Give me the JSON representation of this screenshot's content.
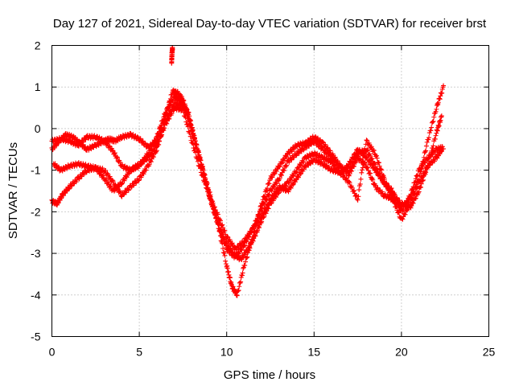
{
  "chart_data": {
    "type": "scatter",
    "title": "Day 127 of 2021, Sidereal Day-to-day VTEC variation (SDTVAR) for receiver brst",
    "xlabel": "GPS time / hours",
    "ylabel": "SDTVAR / TECUs",
    "xlim": [
      0,
      25
    ],
    "ylim": [
      -5,
      2
    ],
    "xticks": [
      "0",
      "5",
      "10",
      "15",
      "20",
      "25"
    ],
    "yticks": [
      "-5",
      "-4",
      "-3",
      "-2",
      "-1",
      "0",
      "1",
      "2"
    ],
    "grid": true,
    "marker": "plus",
    "color": "#ff0000",
    "series": [
      {
        "x": [
          0.0,
          0.5,
          1.0,
          1.5,
          2.0,
          2.5,
          3.0,
          3.3,
          3.6,
          4.0,
          4.5,
          5.0,
          5.5,
          6.0,
          6.5,
          6.9,
          7.2,
          7.5,
          7.8,
          8.1,
          8.5,
          9.0,
          9.5,
          10.0,
          10.3,
          10.6,
          11.0,
          11.5,
          12.0,
          12.5,
          13.0,
          13.5,
          14.0,
          14.5,
          15.0,
          15.5,
          16.0,
          16.5,
          17.0,
          17.5,
          18.0,
          18.5,
          19.0,
          19.5,
          20.0,
          20.5,
          21.0,
          21.5,
          22.0,
          22.4
        ],
        "y": [
          -0.3,
          -0.25,
          -0.3,
          -0.4,
          -0.2,
          -0.2,
          -0.3,
          -0.25,
          -0.3,
          -0.2,
          -0.15,
          -0.25,
          -0.45,
          -0.3,
          0.3,
          0.9,
          0.85,
          0.7,
          0.3,
          -0.2,
          -0.8,
          -1.5,
          -2.3,
          -3.3,
          -3.8,
          -4.0,
          -3.3,
          -2.6,
          -1.8,
          -1.2,
          -0.9,
          -0.6,
          -0.4,
          -0.35,
          -0.2,
          -0.35,
          -0.6,
          -0.9,
          -1.1,
          -0.7,
          -0.9,
          -1.4,
          -1.6,
          -1.7,
          -1.9,
          -1.7,
          -1.2,
          -0.3,
          0.5,
          1.0
        ]
      },
      {
        "x": [
          0.0,
          0.3,
          0.6,
          1.0,
          1.5,
          2.0,
          2.5,
          3.0,
          3.5,
          4.0,
          4.5,
          5.0,
          5.5,
          6.0,
          6.5,
          7.0,
          7.5,
          7.8,
          8.2,
          8.6,
          9.0,
          9.5,
          10.0,
          10.5,
          11.0,
          11.5,
          12.0,
          12.5,
          13.0,
          13.5,
          14.0,
          14.5,
          15.0,
          15.5,
          16.0,
          16.5,
          17.0,
          17.5,
          18.0,
          18.5,
          19.0,
          19.5,
          20.0,
          20.5,
          21.0,
          21.5,
          22.0,
          22.3
        ],
        "y": [
          -1.75,
          -1.8,
          -1.6,
          -1.4,
          -1.2,
          -1.0,
          -0.95,
          -1.0,
          -1.3,
          -1.6,
          -1.4,
          -1.2,
          -0.9,
          -0.5,
          0.2,
          0.6,
          0.55,
          0.4,
          -0.3,
          -0.9,
          -1.6,
          -2.3,
          -2.9,
          -3.1,
          -2.8,
          -2.4,
          -1.9,
          -1.5,
          -1.2,
          -0.8,
          -0.6,
          -0.45,
          -0.3,
          -0.5,
          -0.7,
          -0.95,
          -1.0,
          -0.6,
          -0.5,
          -0.9,
          -1.3,
          -1.6,
          -1.8,
          -1.9,
          -1.5,
          -0.9,
          -0.1,
          0.3
        ]
      },
      {
        "x": [
          0.0,
          0.4,
          0.8,
          1.2,
          1.6,
          2.0,
          2.5,
          3.0,
          3.5,
          4.0,
          4.5,
          5.0,
          5.5,
          6.0,
          6.5,
          7.0,
          7.3,
          7.6,
          8.0,
          8.4,
          8.8,
          9.2,
          9.6,
          10.0,
          10.4,
          10.8,
          11.2,
          11.6,
          12.0,
          12.5,
          13.0,
          13.5,
          14.0,
          14.5,
          15.0,
          15.5,
          16.0,
          16.5,
          17.0,
          17.5,
          18.0,
          18.5,
          19.0,
          19.5,
          20.0,
          20.5,
          21.0,
          21.5,
          22.0,
          22.4
        ],
        "y": [
          -0.5,
          -0.3,
          -0.15,
          -0.2,
          -0.35,
          -0.5,
          -0.4,
          -0.3,
          -0.55,
          -0.9,
          -1.0,
          -0.9,
          -0.6,
          -0.2,
          0.4,
          0.75,
          0.7,
          0.5,
          0.0,
          -0.6,
          -1.3,
          -1.9,
          -2.4,
          -2.8,
          -3.0,
          -3.15,
          -2.9,
          -2.6,
          -2.2,
          -1.8,
          -1.5,
          -1.3,
          -1.0,
          -0.7,
          -0.6,
          -0.7,
          -0.8,
          -1.1,
          -0.85,
          -0.5,
          -0.7,
          -1.0,
          -1.3,
          -1.5,
          -2.0,
          -1.6,
          -1.0,
          -0.7,
          -0.5,
          -0.45
        ]
      },
      {
        "x": [
          0.1,
          0.5,
          1.0,
          1.5,
          2.0,
          2.5,
          3.0,
          3.5,
          4.0,
          4.5,
          5.0,
          5.5,
          6.0,
          6.5,
          7.0,
          7.5,
          8.0,
          8.5,
          9.0,
          9.5,
          10.0,
          10.5,
          11.0,
          11.5,
          12.0,
          12.5,
          13.0,
          13.5,
          14.0,
          14.5,
          15.0,
          15.5,
          16.0,
          16.5,
          17.0,
          17.5,
          18.0,
          18.5,
          19.0,
          19.5,
          20.0,
          20.5,
          21.0,
          21.5,
          22.0,
          22.3
        ],
        "y": [
          -0.85,
          -1.0,
          -0.9,
          -0.85,
          -0.9,
          -0.95,
          -1.2,
          -1.5,
          -1.3,
          -1.0,
          -0.85,
          -0.7,
          -0.4,
          0.1,
          0.5,
          0.45,
          -0.3,
          -1.0,
          -1.6,
          -2.1,
          -2.6,
          -2.9,
          -2.7,
          -2.4,
          -2.1,
          -1.7,
          -1.4,
          -1.5,
          -1.2,
          -0.9,
          -0.75,
          -0.85,
          -1.0,
          -1.05,
          -1.3,
          -1.7,
          -0.3,
          -0.6,
          -1.2,
          -1.7,
          -2.2,
          -1.8,
          -1.3,
          -0.9,
          -0.7,
          -0.5
        ]
      },
      {
        "x": [
          6.85,
          6.87,
          6.9
        ],
        "y": [
          1.6,
          1.8,
          1.95
        ]
      }
    ]
  }
}
